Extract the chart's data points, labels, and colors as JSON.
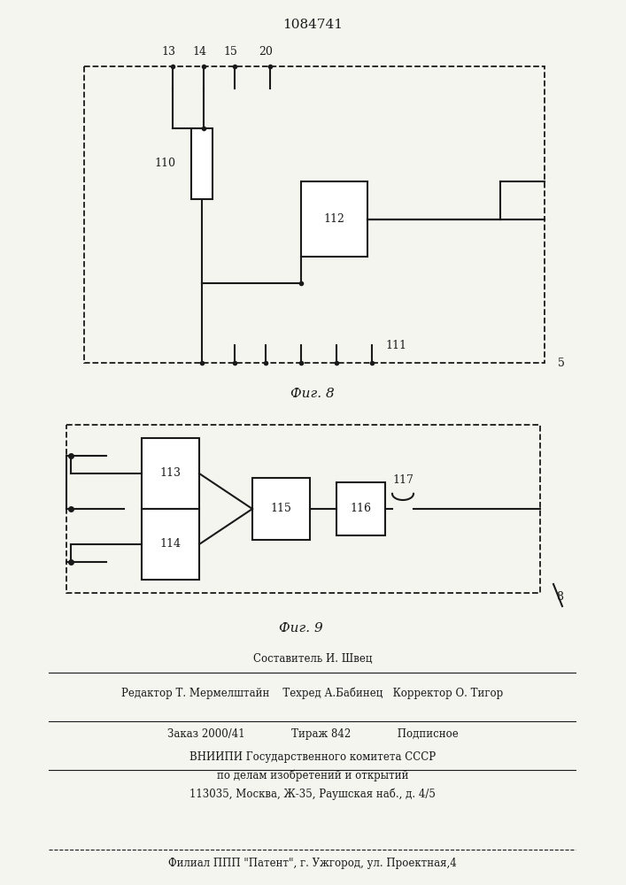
{
  "title": "1084741",
  "fig8_label": "Фиг. 8",
  "fig9_label": "Фиг. 9",
  "footer_line1": "Составитель И. Швец",
  "footer_line2": "Редактор Т. Мермелштайн    Техред А.Бабинец   Корректор О. Тигор",
  "footer_line3": "Заказ 2000/41              Тираж 842              Подписное",
  "footer_line4": "ВНИИПИ Государственного комитета СССР",
  "footer_line5": "по делам изобретений и открытий",
  "footer_line6": "113035, Москва, Ж-35, Раушская наб., д. 4/5",
  "footer_line7": "Филиал ППП \"Патент\", г. Ужгород, ул. Проектная,4",
  "bg_color": "#f5f5f0",
  "line_color": "#1a1a1a",
  "box_color": "#1a1a1a"
}
